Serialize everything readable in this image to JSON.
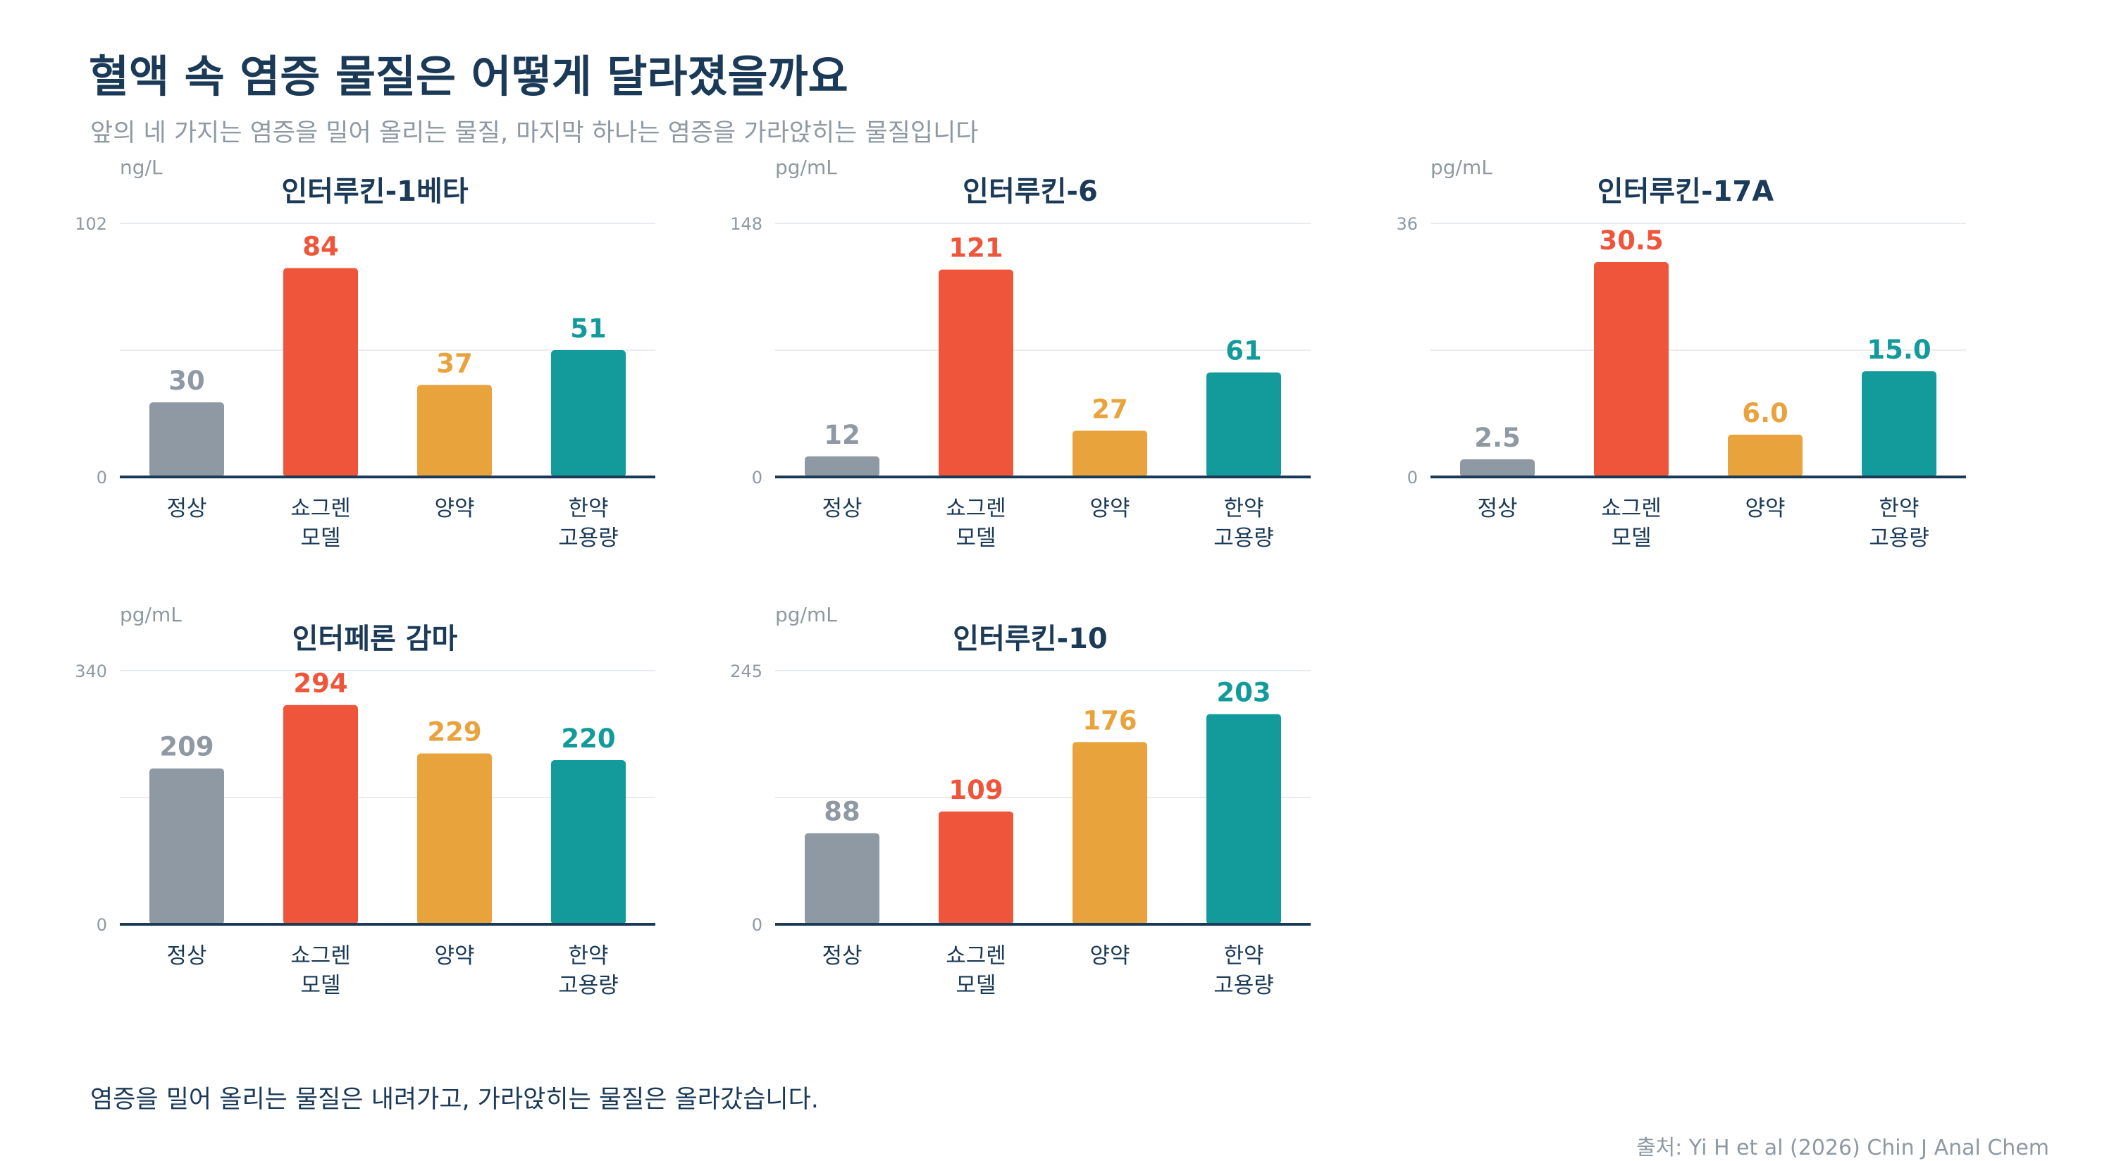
{
  "title": "혈액 속 염증 물질은 어떻게 달라졌을까요",
  "subtitle": "앞의 네 가지는 염증을 밀어 올리는 물질, 마지막 하나는 염증을 가라앉히는 물질입니다",
  "footer": "염증을 밀어 올리는 물질은 내려가고, 가라앉히는 물질은 올라갔습니다.",
  "source": "출처: Yi H et al (2026) Chin J Anal Chem",
  "colors": {
    "정상": "#8e99a3",
    "쇼그렌 모델": "#ef553b",
    "양약": "#e8a33d",
    "한약 고용량": "#139a9a",
    "axis": "#1b3a57",
    "grid": "#e9ecef"
  },
  "chart_data": [
    {
      "type": "bar",
      "title": "인터루킨-1베타",
      "ylabel": "ng/L",
      "categories": [
        [
          "정상"
        ],
        [
          "쇼그렌",
          "모델"
        ],
        [
          "양약"
        ],
        [
          "한약",
          "고용량"
        ]
      ],
      "values": [
        30,
        84,
        37,
        51
      ],
      "value_labels": [
        "30",
        "84",
        "37",
        "51"
      ],
      "ylim": [
        0,
        102
      ],
      "yticks": [
        0,
        102
      ],
      "grid": true
    },
    {
      "type": "bar",
      "title": "인터루킨-6",
      "ylabel": "pg/mL",
      "categories": [
        [
          "정상"
        ],
        [
          "쇼그렌",
          "모델"
        ],
        [
          "양약"
        ],
        [
          "한약",
          "고용량"
        ]
      ],
      "values": [
        12,
        121,
        27,
        61
      ],
      "value_labels": [
        "12",
        "121",
        "27",
        "61"
      ],
      "ylim": [
        0,
        148
      ],
      "yticks": [
        0,
        148
      ],
      "grid": true
    },
    {
      "type": "bar",
      "title": "인터루킨-17A",
      "ylabel": "pg/mL",
      "categories": [
        [
          "정상"
        ],
        [
          "쇼그렌",
          "모델"
        ],
        [
          "양약"
        ],
        [
          "한약",
          "고용량"
        ]
      ],
      "values": [
        2.5,
        30.5,
        6.0,
        15.0
      ],
      "value_labels": [
        "2.5",
        "30.5",
        "6.0",
        "15.0"
      ],
      "ylim": [
        0,
        36
      ],
      "yticks": [
        0,
        36
      ],
      "grid": true
    },
    {
      "type": "bar",
      "title": "인터페론 감마",
      "ylabel": "pg/mL",
      "categories": [
        [
          "정상"
        ],
        [
          "쇼그렌",
          "모델"
        ],
        [
          "양약"
        ],
        [
          "한약",
          "고용량"
        ]
      ],
      "values": [
        209,
        294,
        229,
        220
      ],
      "value_labels": [
        "209",
        "294",
        "229",
        "220"
      ],
      "ylim": [
        0,
        340
      ],
      "yticks": [
        0,
        340
      ],
      "grid": true
    },
    {
      "type": "bar",
      "title": "인터루킨-10",
      "ylabel": "pg/mL",
      "categories": [
        [
          "정상"
        ],
        [
          "쇼그렌",
          "모델"
        ],
        [
          "양약"
        ],
        [
          "한약",
          "고용량"
        ]
      ],
      "values": [
        88,
        109,
        176,
        203
      ],
      "value_labels": [
        "88",
        "109",
        "176",
        "203"
      ],
      "ylim": [
        0,
        245
      ],
      "yticks": [
        0,
        245
      ],
      "grid": true
    }
  ]
}
